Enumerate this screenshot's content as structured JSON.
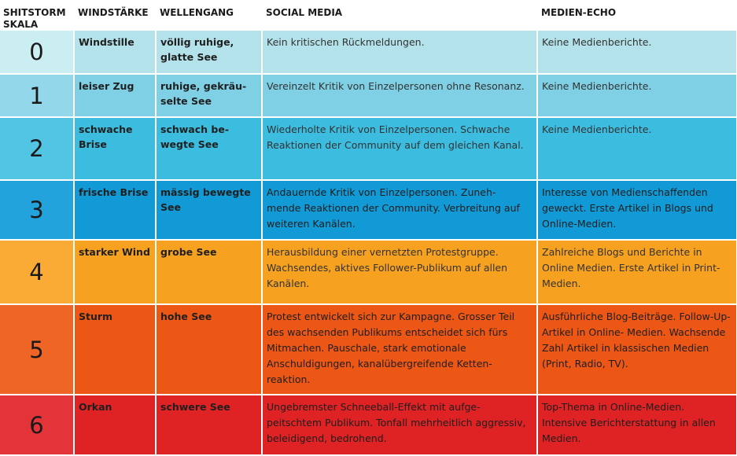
{
  "headers": {
    "scale": "SHITSTORM SKALA",
    "wind": "WINDSTÄRKE",
    "waves": "WELLENGANG",
    "social": "SOCIAL MEDIA",
    "media": "MEDIEN-ECHO"
  },
  "rows": [
    {
      "level": "0",
      "wind": "Windstille",
      "waves": "völlig ruhige, glatte See",
      "social": "Kein kritischen Rückmeldungen.",
      "media": "Keine Medienberichte.",
      "color": "#b4e2ea"
    },
    {
      "level": "1",
      "wind": "leiser Zug",
      "waves": "ruhige, gekräu- selte See",
      "social": "Vereinzelt Kritik von Einzelpersonen ohne Resonanz.",
      "media": "Keine Medienberichte.",
      "color": "#7fd0e5"
    },
    {
      "level": "2",
      "wind": "schwache Brise",
      "waves": "schwach be- wegte See",
      "social": "Wiederholte Kritik von Einzelpersonen. Schwache Reaktionen der Community auf dem gleichen Kanal.",
      "media": "Keine Medienberichte.",
      "color": "#3cbde0"
    },
    {
      "level": "3",
      "wind": "frische Brise",
      "waves": "mässig bewegte See",
      "social": "Andauernde Kritik von Einzelpersonen. Zuneh- mende Reaktionen der Community. Verbreitung auf weiteren Kanälen.",
      "media": "Interesse von Medienschaffenden geweckt. Erste Artikel in Blogs und Online-Medien.",
      "color": "#119ad6"
    },
    {
      "level": "4",
      "wind": "starker Wind",
      "waves": "grobe See",
      "social": "Herausbildung einer vernetzten Protestgruppe. Wachsendes, aktives Follower-Publikum auf allen Kanälen.",
      "media": "Zahlreiche Blogs und Berichte in Online Medien. Erste Artikel in Print-Medien.",
      "color": "#f7a121"
    },
    {
      "level": "5",
      "wind": "Sturm",
      "waves": "hohe See",
      "social": "Protest entwickelt sich zur Kampagne. Grosser Teil des wachsenden Publikums entscheidet sich fürs Mitmachen. Pauschale, stark emotionale Anschuldigungen, kanalübergreifende Ketten- reaktion.",
      "media": "Ausführliche Blog-Beiträge. Follow-Up-Artikel in Online- Medien. Wachsende Zahl Artikel in klassischen Medien (Print, Radio, TV).",
      "color": "#ec5716"
    },
    {
      "level": "6",
      "wind": "Orkan",
      "waves": "schwere See",
      "social": "Ungebremster Schneeball-Effekt mit aufge- peitschtem Publikum. Tonfall mehrheitlich aggressiv, beleidigend, bedrohend.",
      "media": "Top-Thema in Online-Medien. Intensive Berichterstattung in allen Medien.",
      "color": "#df2224"
    }
  ]
}
